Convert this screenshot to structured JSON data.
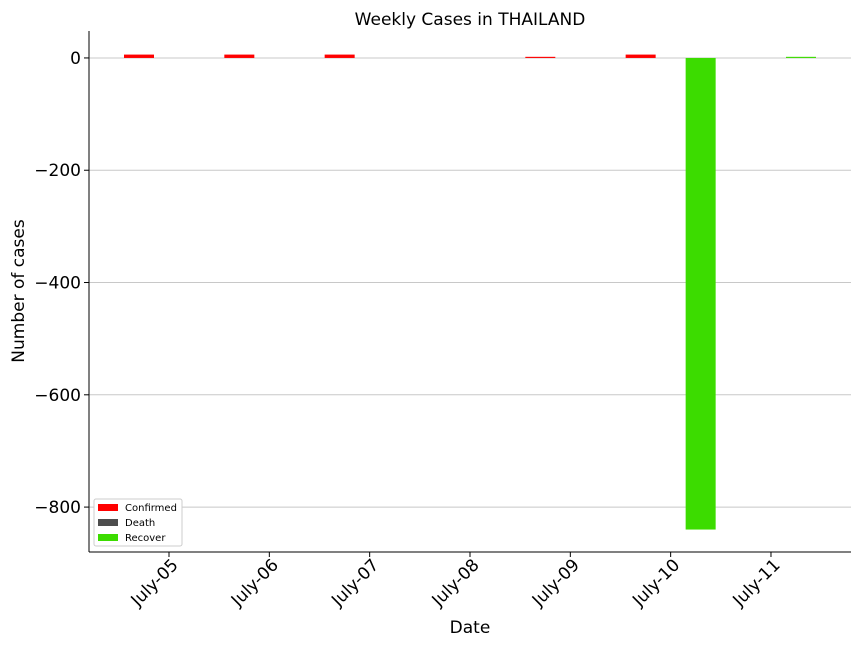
{
  "chart_data": {
    "type": "bar",
    "title": "Weekly Cases in THAILAND",
    "xlabel": "Date",
    "ylabel": "Number of cases",
    "categories": [
      "July-05",
      "July-06",
      "July-07",
      "July-08",
      "July-09",
      "July-10",
      "July-11"
    ],
    "series": [
      {
        "name": "Confirmed",
        "color": "#ff0000",
        "values": [
          6,
          6,
          6,
          0,
          2,
          6,
          0
        ]
      },
      {
        "name": "Death",
        "color": "#4d4d4d",
        "values": [
          0,
          0,
          0,
          0,
          0,
          0,
          0
        ]
      },
      {
        "name": "Recover",
        "color": "#3cdc00",
        "values": [
          0,
          0,
          0,
          0,
          0,
          -840,
          2
        ]
      }
    ],
    "ylim": [
      -880,
      48
    ],
    "yticks": [
      0,
      -200,
      -400,
      -600,
      -800
    ],
    "ytick_labels": [
      "0",
      "−200",
      "−400",
      "−600",
      "−800"
    ],
    "grid": "horizontal",
    "legend_position": "lower-left"
  }
}
